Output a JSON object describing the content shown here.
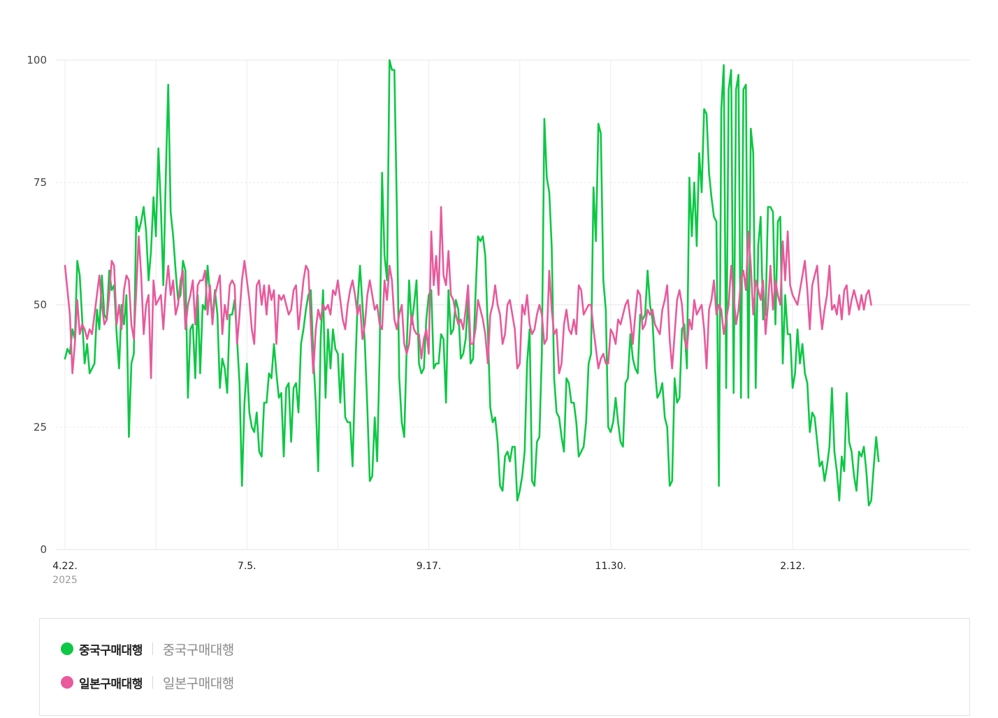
{
  "chart_data": {
    "type": "line",
    "title": "",
    "xlabel": "",
    "ylabel": "",
    "ylim": [
      0,
      100
    ],
    "y_ticks": [
      "0",
      "25",
      "50",
      "75",
      "100"
    ],
    "x_ticks": [
      {
        "label": "4.22.",
        "sub": "2025",
        "index": 0
      },
      {
        "label": "7.5.",
        "sub": "",
        "index": 74
      },
      {
        "label": "9.17.",
        "sub": "",
        "index": 148
      },
      {
        "label": "11.30.",
        "sub": "",
        "index": 222
      },
      {
        "label": "2.12.",
        "sub": "",
        "index": 296
      }
    ],
    "grid": true,
    "legend_position": "bottom",
    "series": [
      {
        "name": "중국구매대행",
        "color": "#0cc844",
        "values": [
          39,
          41,
          40,
          45,
          43,
          59,
          56,
          47,
          38,
          42,
          36,
          37,
          38,
          49,
          45,
          56,
          48,
          47,
          57,
          53,
          54,
          44,
          37,
          50,
          46,
          52,
          23,
          38,
          40,
          68,
          65,
          67,
          70,
          65,
          55,
          61,
          72,
          64,
          82,
          70,
          54,
          76,
          95,
          69,
          64,
          57,
          51,
          52,
          59,
          57,
          31,
          45,
          46,
          35,
          52,
          36,
          50,
          49,
          58,
          52,
          47,
          53,
          48,
          33,
          39,
          37,
          32,
          48,
          48,
          51,
          43,
          34,
          13,
          30,
          38,
          28,
          25,
          24,
          28,
          20,
          19,
          30,
          30,
          36,
          35,
          42,
          36,
          31,
          32,
          19,
          33,
          34,
          22,
          33,
          34,
          28,
          42,
          45,
          49,
          52,
          53,
          40,
          30,
          16,
          43,
          53,
          31,
          45,
          37,
          45,
          41,
          40,
          30,
          40,
          27,
          26,
          26,
          17,
          35,
          50,
          58,
          50,
          42,
          29,
          14,
          15,
          27,
          18,
          40,
          77,
          60,
          55,
          100,
          98,
          98,
          70,
          35,
          26,
          23,
          41,
          55,
          46,
          50,
          55,
          38,
          36,
          37,
          47,
          52,
          53,
          37,
          38,
          38,
          44,
          43,
          30,
          53,
          44,
          45,
          51,
          49,
          39,
          40,
          43,
          51,
          38,
          39,
          52,
          64,
          63,
          64,
          60,
          45,
          29,
          26,
          27,
          22,
          13,
          12,
          19,
          20,
          18,
          21,
          21,
          10,
          12,
          15,
          20,
          38,
          45,
          14,
          13,
          22,
          23,
          40,
          88,
          76,
          73,
          62,
          35,
          28,
          27,
          23,
          20,
          35,
          34,
          30,
          30,
          26,
          19,
          20,
          21,
          26,
          38,
          40,
          74,
          63,
          87,
          85,
          55,
          49,
          25,
          24,
          26,
          31,
          26,
          22,
          21,
          34,
          35,
          44,
          39,
          37,
          36,
          48,
          47,
          48,
          57,
          50,
          47,
          37,
          31,
          32,
          34,
          27,
          25,
          13,
          14,
          35,
          30,
          31,
          45,
          46,
          37,
          76,
          64,
          75,
          62,
          81,
          73,
          90,
          89,
          77,
          72,
          68,
          67,
          13,
          90,
          99,
          33,
          94,
          98,
          32,
          94,
          97,
          31,
          94,
          95,
          31,
          86,
          81,
          33,
          62,
          68,
          47,
          48,
          70,
          70,
          69,
          46,
          67,
          68,
          38,
          52,
          44,
          44,
          33,
          36,
          45,
          38,
          42,
          36,
          34,
          24,
          28,
          27,
          22,
          17,
          18,
          14,
          17,
          21,
          33,
          20,
          16,
          10,
          19,
          16,
          32,
          22,
          20,
          15,
          12,
          20,
          19,
          21,
          16,
          9,
          10,
          17,
          23,
          18
        ]
      },
      {
        "name": "일본구매대행",
        "color": "#e85a9c",
        "values": [
          58,
          53,
          48,
          36,
          42,
          51,
          44,
          46,
          45,
          43,
          45,
          44,
          48,
          52,
          56,
          50,
          46,
          47,
          52,
          59,
          58,
          46,
          50,
          45,
          53,
          56,
          55,
          46,
          43,
          53,
          64,
          56,
          44,
          50,
          52,
          35,
          55,
          50,
          51,
          52,
          45,
          53,
          58,
          52,
          55,
          48,
          50,
          55,
          57,
          45,
          50,
          52,
          55,
          46,
          54,
          55,
          55,
          57,
          48,
          54,
          46,
          52,
          54,
          56,
          44,
          50,
          47,
          54,
          55,
          54,
          42,
          48,
          55,
          59,
          55,
          51,
          45,
          42,
          54,
          55,
          50,
          54,
          48,
          54,
          51,
          53,
          42,
          52,
          51,
          52,
          50,
          48,
          49,
          53,
          54,
          45,
          50,
          55,
          58,
          57,
          46,
          36,
          45,
          49,
          47,
          50,
          49,
          50,
          48,
          53,
          52,
          55,
          51,
          47,
          45,
          50,
          53,
          55,
          52,
          48,
          50,
          43,
          46,
          52,
          55,
          52,
          49,
          50,
          46,
          45,
          55,
          51,
          58,
          55,
          47,
          45,
          48,
          50,
          42,
          40,
          42,
          48,
          45,
          44,
          44,
          39,
          43,
          45,
          40,
          65,
          54,
          60,
          52,
          70,
          56,
          54,
          61,
          52,
          51,
          48,
          46,
          47,
          45,
          49,
          54,
          42,
          42,
          45,
          51,
          49,
          47,
          44,
          38,
          48,
          50,
          54,
          50,
          48,
          42,
          44,
          50,
          51,
          48,
          45,
          37,
          38,
          50,
          48,
          52,
          46,
          44,
          45,
          48,
          50,
          48,
          42,
          43,
          57,
          49,
          44,
          45,
          36,
          38,
          46,
          49,
          45,
          44,
          47,
          44,
          54,
          53,
          48,
          49,
          50,
          50,
          45,
          41,
          37,
          39,
          40,
          38,
          38,
          45,
          44,
          42,
          47,
          46,
          48,
          50,
          51,
          47,
          42,
          48,
          53,
          52,
          45,
          46,
          49,
          48,
          49,
          46,
          45,
          44,
          49,
          51,
          54,
          43,
          37,
          44,
          51,
          53,
          50,
          43,
          41,
          47,
          45,
          51,
          48,
          49,
          50,
          45,
          37,
          49,
          51,
          55,
          48,
          50,
          49,
          44,
          47,
          50,
          58,
          52,
          46,
          49,
          55,
          57,
          53,
          65,
          58,
          48,
          55,
          53,
          51,
          55,
          44,
          50,
          58,
          49,
          55,
          52,
          50,
          63,
          55,
          65,
          54,
          52,
          51,
          50,
          53,
          56,
          59,
          53,
          45,
          54,
          56,
          58,
          50,
          45,
          49,
          52,
          58,
          49,
          50,
          48,
          52,
          47,
          53,
          54,
          48,
          51,
          53,
          51,
          49,
          52,
          49,
          52,
          53,
          50
        ]
      }
    ]
  },
  "legend": {
    "items": [
      {
        "name": "중국구매대행",
        "desc": "중국구매대행",
        "color": "#0cc844"
      },
      {
        "name": "일본구매대행",
        "desc": "일본구매대행",
        "color": "#e85a9c"
      }
    ]
  }
}
